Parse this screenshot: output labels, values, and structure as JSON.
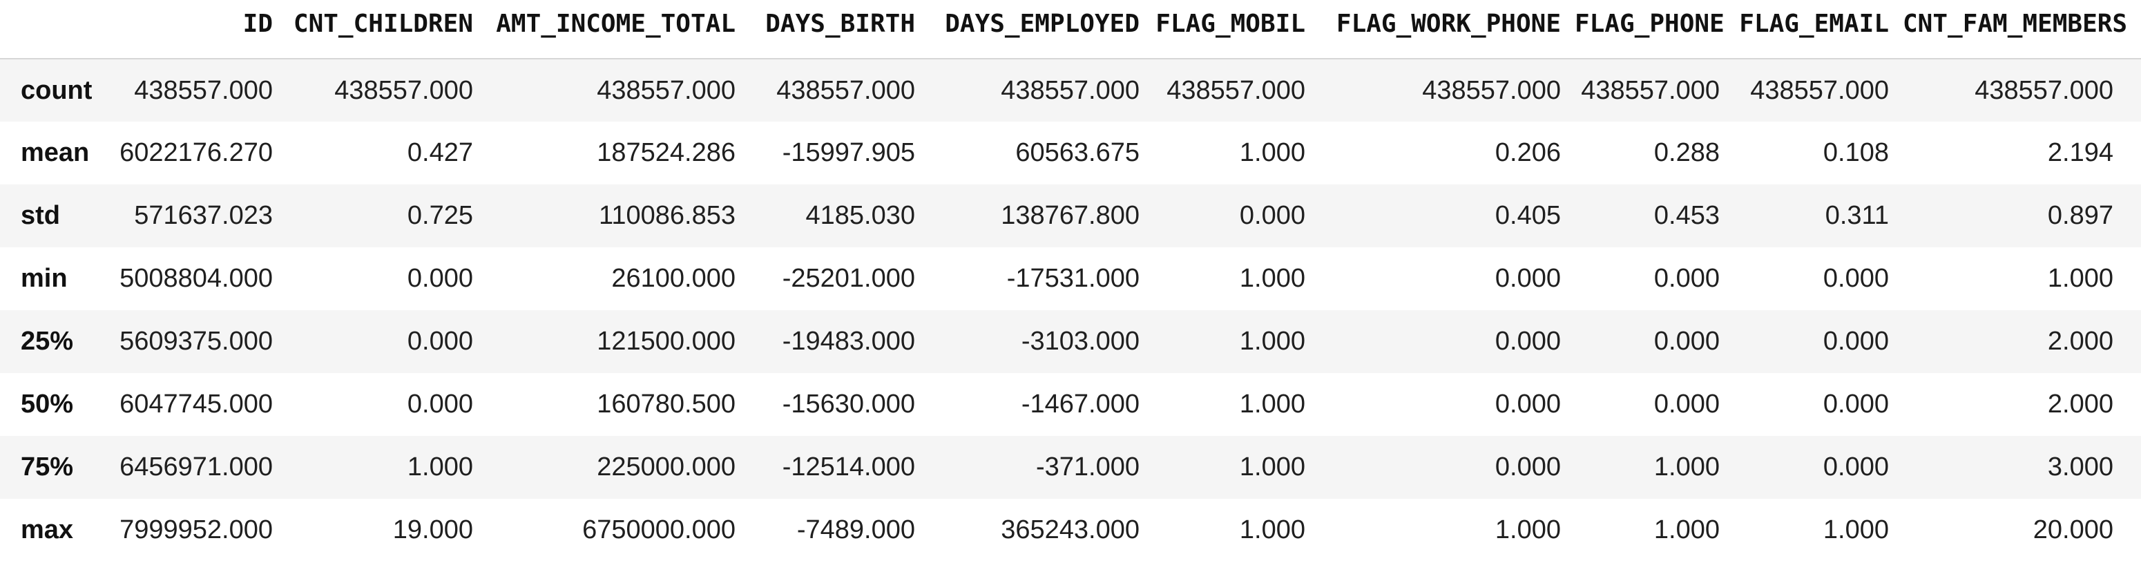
{
  "chart_data": {
    "type": "table",
    "index_label": "",
    "columns": [
      "ID",
      "CNT_CHILDREN",
      "AMT_INCOME_TOTAL",
      "DAYS_BIRTH",
      "DAYS_EMPLOYED",
      "FLAG_MOBIL",
      "FLAG_WORK_PHONE",
      "FLAG_PHONE",
      "FLAG_EMAIL",
      "CNT_FAM_MEMBERS"
    ],
    "rows": [
      {
        "label": "count",
        "values": [
          "438557.000",
          "438557.000",
          "438557.000",
          "438557.000",
          "438557.000",
          "438557.000",
          "438557.000",
          "438557.000",
          "438557.000",
          "438557.000"
        ]
      },
      {
        "label": "mean",
        "values": [
          "6022176.270",
          "0.427",
          "187524.286",
          "-15997.905",
          "60563.675",
          "1.000",
          "0.206",
          "0.288",
          "0.108",
          "2.194"
        ]
      },
      {
        "label": "std",
        "values": [
          "571637.023",
          "0.725",
          "110086.853",
          "4185.030",
          "138767.800",
          "0.000",
          "0.405",
          "0.453",
          "0.311",
          "0.897"
        ]
      },
      {
        "label": "min",
        "values": [
          "5008804.000",
          "0.000",
          "26100.000",
          "-25201.000",
          "-17531.000",
          "1.000",
          "0.000",
          "0.000",
          "0.000",
          "1.000"
        ]
      },
      {
        "label": "25%",
        "values": [
          "5609375.000",
          "0.000",
          "121500.000",
          "-19483.000",
          "-3103.000",
          "1.000",
          "0.000",
          "0.000",
          "0.000",
          "2.000"
        ]
      },
      {
        "label": "50%",
        "values": [
          "6047745.000",
          "0.000",
          "160780.500",
          "-15630.000",
          "-1467.000",
          "1.000",
          "0.000",
          "0.000",
          "0.000",
          "2.000"
        ]
      },
      {
        "label": "75%",
        "values": [
          "6456971.000",
          "1.000",
          "225000.000",
          "-12514.000",
          "-371.000",
          "1.000",
          "0.000",
          "1.000",
          "0.000",
          "3.000"
        ]
      },
      {
        "label": "max",
        "values": [
          "7999952.000",
          "19.000",
          "6750000.000",
          "-7489.000",
          "365243.000",
          "1.000",
          "1.000",
          "1.000",
          "1.000",
          "20.000"
        ]
      }
    ]
  },
  "style": {
    "stripe_color": "#f5f5f5",
    "header_rule_color": "#d6d6d6",
    "text_color": "#1f1f1f"
  }
}
